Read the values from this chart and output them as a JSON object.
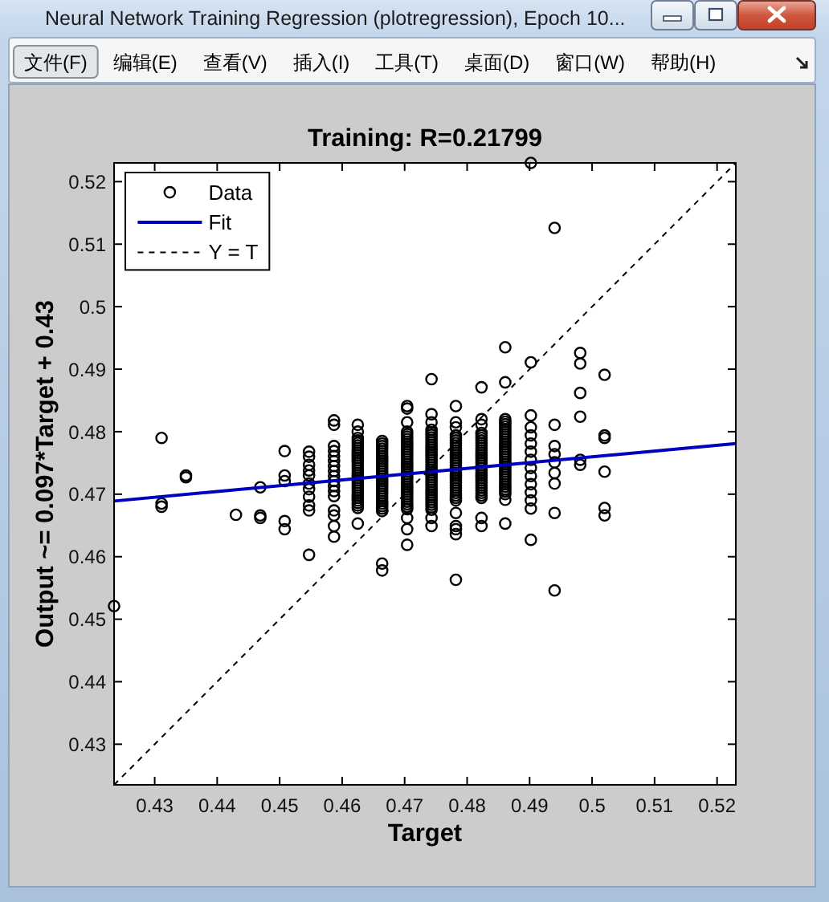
{
  "chart_data": {
    "type": "scatter",
    "title": "Training: R=0.21799",
    "xlabel": "Target",
    "ylabel": "Output ~= 0.097*Target + 0.43",
    "annotations": [
      "Neural Network Training Regression (plotregression), Epoch 10...",
      "文件(F)",
      "编辑(E)",
      "查看(V)",
      "插入(I)",
      "工具(T)",
      "桌面(D)",
      "窗口(W)",
      "帮助(H)"
    ],
    "xlim": [
      0.4235,
      0.523
    ],
    "ylim": [
      0.4235,
      0.523
    ],
    "xticks": [
      0.43,
      0.44,
      0.45,
      0.46,
      0.47,
      0.48,
      0.49,
      0.5,
      0.51,
      0.52
    ],
    "yticks": [
      0.43,
      0.44,
      0.45,
      0.46,
      0.47,
      0.48,
      0.49,
      0.5,
      0.51,
      0.52
    ],
    "legend": "top left",
    "series": [
      {
        "name": "Data",
        "color": "#000000",
        "marker": "circle",
        "x": [
          0.4235,
          0.4311,
          0.4311,
          0.4311,
          0.435,
          0.435,
          0.443,
          0.4469,
          0.4469,
          0.4469,
          0.4508,
          0.4508,
          0.4508,
          0.4508,
          0.4508,
          0.4547,
          0.4547,
          0.4547,
          0.4547,
          0.4547,
          0.4547,
          0.4547,
          0.4547,
          0.4547,
          0.4547,
          0.4547,
          0.4587,
          0.4587,
          0.4587,
          0.4587,
          0.4587,
          0.4587,
          0.4587,
          0.4587,
          0.4587,
          0.4587,
          0.4587,
          0.4587,
          0.4587,
          0.4587,
          0.4587,
          0.4587,
          0.4587,
          0.4625,
          0.4625,
          0.4625,
          0.4625,
          0.4625,
          0.4625,
          0.4625,
          0.4625,
          0.4625,
          0.4625,
          0.4625,
          0.4625,
          0.4625,
          0.4625,
          0.4625,
          0.4625,
          0.4625,
          0.4625,
          0.4625,
          0.4625,
          0.4625,
          0.4625,
          0.4625,
          0.4625,
          0.4625,
          0.4625,
          0.4625,
          0.4625,
          0.4625,
          0.4625,
          0.4625,
          0.4625,
          0.4664,
          0.4664,
          0.4664,
          0.4664,
          0.4664,
          0.4664,
          0.4664,
          0.4664,
          0.4664,
          0.4664,
          0.4664,
          0.4664,
          0.4664,
          0.4664,
          0.4664,
          0.4664,
          0.4664,
          0.4664,
          0.4664,
          0.4664,
          0.4664,
          0.4664,
          0.4664,
          0.4664,
          0.4664,
          0.4664,
          0.4664,
          0.4664,
          0.4664,
          0.4664,
          0.4664,
          0.4704,
          0.4704,
          0.4704,
          0.4704,
          0.4704,
          0.4704,
          0.4704,
          0.4704,
          0.4704,
          0.4704,
          0.4704,
          0.4704,
          0.4704,
          0.4704,
          0.4704,
          0.4704,
          0.4704,
          0.4704,
          0.4704,
          0.4704,
          0.4704,
          0.4704,
          0.4704,
          0.4704,
          0.4704,
          0.4704,
          0.4704,
          0.4704,
          0.4704,
          0.4704,
          0.4704,
          0.4704,
          0.4704,
          0.4704,
          0.4704,
          0.4704,
          0.4704,
          0.4704,
          0.4743,
          0.4743,
          0.4743,
          0.4743,
          0.4743,
          0.4743,
          0.4743,
          0.4743,
          0.4743,
          0.4743,
          0.4743,
          0.4743,
          0.4743,
          0.4743,
          0.4743,
          0.4743,
          0.4743,
          0.4743,
          0.4743,
          0.4743,
          0.4743,
          0.4743,
          0.4743,
          0.4743,
          0.4743,
          0.4743,
          0.4743,
          0.4743,
          0.4743,
          0.4743,
          0.4743,
          0.4743,
          0.4743,
          0.4743,
          0.4743,
          0.4743,
          0.4743,
          0.4743,
          0.4782,
          0.4782,
          0.4782,
          0.4782,
          0.4782,
          0.4782,
          0.4782,
          0.4782,
          0.4782,
          0.4782,
          0.4782,
          0.4782,
          0.4782,
          0.4782,
          0.4782,
          0.4782,
          0.4782,
          0.4782,
          0.4782,
          0.4782,
          0.4782,
          0.4782,
          0.4782,
          0.4782,
          0.4782,
          0.4782,
          0.4782,
          0.4782,
          0.4782,
          0.4782,
          0.4782,
          0.4782,
          0.4782,
          0.4782,
          0.4782,
          0.4823,
          0.4823,
          0.4823,
          0.4823,
          0.4823,
          0.4823,
          0.4823,
          0.4823,
          0.4823,
          0.4823,
          0.4823,
          0.4823,
          0.4823,
          0.4823,
          0.4823,
          0.4823,
          0.4823,
          0.4823,
          0.4823,
          0.4823,
          0.4823,
          0.4823,
          0.4823,
          0.4823,
          0.4823,
          0.4823,
          0.4823,
          0.4823,
          0.4823,
          0.4823,
          0.4823,
          0.4823,
          0.4861,
          0.4861,
          0.4861,
          0.4861,
          0.4861,
          0.4861,
          0.4861,
          0.4861,
          0.4861,
          0.4861,
          0.4861,
          0.4861,
          0.4861,
          0.4861,
          0.4861,
          0.4861,
          0.4861,
          0.4861,
          0.4861,
          0.4861,
          0.4861,
          0.4861,
          0.4861,
          0.4861,
          0.4861,
          0.4861,
          0.4861,
          0.4861,
          0.4861,
          0.4861,
          0.4861,
          0.4861,
          0.4861,
          0.4861,
          0.4861,
          0.4902,
          0.4902,
          0.4902,
          0.4902,
          0.4902,
          0.4902,
          0.4902,
          0.4902,
          0.4902,
          0.4902,
          0.4902,
          0.4902,
          0.4902,
          0.4902,
          0.4902,
          0.494,
          0.494,
          0.494,
          0.494,
          0.494,
          0.494,
          0.494,
          0.494,
          0.494,
          0.4981,
          0.4981,
          0.4981,
          0.4981,
          0.4981,
          0.4981,
          0.502,
          0.502,
          0.502,
          0.502,
          0.502,
          0.502
        ],
        "values": [
          0.4521,
          0.479,
          0.4685,
          0.468,
          0.473,
          0.4727,
          0.4667,
          0.4711,
          0.4666,
          0.4662,
          0.4769,
          0.473,
          0.4721,
          0.4657,
          0.4644,
          0.4768,
          0.476,
          0.4747,
          0.4738,
          0.473,
          0.4717,
          0.4708,
          0.4696,
          0.4682,
          0.4674,
          0.4603,
          0.4818,
          0.4811,
          0.4777,
          0.4769,
          0.4761,
          0.4753,
          0.4745,
          0.4737,
          0.4729,
          0.4721,
          0.4713,
          0.4705,
          0.4697,
          0.4674,
          0.4666,
          0.4649,
          0.4632,
          0.4811,
          0.48,
          0.479,
          0.4786,
          0.4782,
          0.4778,
          0.4774,
          0.477,
          0.4766,
          0.4762,
          0.4758,
          0.4754,
          0.475,
          0.4746,
          0.4742,
          0.4738,
          0.4734,
          0.473,
          0.4726,
          0.4722,
          0.4718,
          0.4714,
          0.471,
          0.4706,
          0.4702,
          0.4698,
          0.4694,
          0.469,
          0.4686,
          0.4682,
          0.4678,
          0.4653,
          0.4785,
          0.4781,
          0.4777,
          0.4773,
          0.4769,
          0.4765,
          0.4761,
          0.4757,
          0.4753,
          0.4749,
          0.4745,
          0.4741,
          0.4737,
          0.4733,
          0.4729,
          0.4725,
          0.4721,
          0.4717,
          0.4713,
          0.4709,
          0.4705,
          0.4701,
          0.4697,
          0.4693,
          0.4689,
          0.4685,
          0.4681,
          0.4677,
          0.4673,
          0.4589,
          0.4578,
          0.4841,
          0.4837,
          0.4815,
          0.48,
          0.4796,
          0.4792,
          0.4788,
          0.4784,
          0.478,
          0.4776,
          0.4772,
          0.4768,
          0.4764,
          0.476,
          0.4756,
          0.4752,
          0.4748,
          0.4744,
          0.474,
          0.4736,
          0.4732,
          0.4728,
          0.4724,
          0.472,
          0.4716,
          0.4712,
          0.4708,
          0.4704,
          0.47,
          0.4696,
          0.4692,
          0.4688,
          0.4684,
          0.468,
          0.4676,
          0.4662,
          0.4644,
          0.4619,
          0.4884,
          0.4828,
          0.4815,
          0.4803,
          0.4799,
          0.4795,
          0.4791,
          0.4787,
          0.4783,
          0.4779,
          0.4775,
          0.4771,
          0.4767,
          0.4763,
          0.4759,
          0.4755,
          0.4751,
          0.4747,
          0.4743,
          0.4739,
          0.4735,
          0.4731,
          0.4727,
          0.4723,
          0.4719,
          0.4715,
          0.4711,
          0.4707,
          0.4703,
          0.4699,
          0.4695,
          0.4691,
          0.4687,
          0.4683,
          0.4679,
          0.4675,
          0.4662,
          0.4649,
          0.4841,
          0.4815,
          0.4807,
          0.4794,
          0.479,
          0.4786,
          0.4782,
          0.4778,
          0.4774,
          0.477,
          0.4766,
          0.4762,
          0.4758,
          0.4754,
          0.475,
          0.4746,
          0.4742,
          0.4738,
          0.4734,
          0.473,
          0.4726,
          0.4722,
          0.4718,
          0.4714,
          0.471,
          0.4706,
          0.4702,
          0.4698,
          0.4694,
          0.469,
          0.467,
          0.4649,
          0.4644,
          0.4636,
          0.4563,
          0.4871,
          0.482,
          0.4811,
          0.4798,
          0.4794,
          0.479,
          0.4786,
          0.4782,
          0.4778,
          0.4774,
          0.477,
          0.4766,
          0.4762,
          0.4758,
          0.4754,
          0.475,
          0.4746,
          0.4742,
          0.4738,
          0.4734,
          0.473,
          0.4726,
          0.4722,
          0.4718,
          0.4714,
          0.471,
          0.4706,
          0.4702,
          0.4698,
          0.4694,
          0.4662,
          0.4649,
          0.4935,
          0.4879,
          0.482,
          0.4816,
          0.4812,
          0.4808,
          0.4804,
          0.48,
          0.4796,
          0.4792,
          0.4788,
          0.4784,
          0.478,
          0.4776,
          0.4772,
          0.4768,
          0.4764,
          0.476,
          0.4756,
          0.4752,
          0.4748,
          0.4744,
          0.474,
          0.4736,
          0.4732,
          0.4728,
          0.4724,
          0.472,
          0.4716,
          0.4712,
          0.4708,
          0.4704,
          0.47,
          0.4691,
          0.4653,
          0.523,
          0.4911,
          0.4826,
          0.4807,
          0.4794,
          0.4781,
          0.4768,
          0.4755,
          0.4742,
          0.4729,
          0.4716,
          0.4703,
          0.469,
          0.4677,
          0.4627,
          0.5126,
          0.4811,
          0.4777,
          0.4764,
          0.4751,
          0.4734,
          0.4717,
          0.467,
          0.4546,
          0.4926,
          0.4909,
          0.4862,
          0.4824,
          0.4755,
          0.4747,
          0.4891,
          0.4794,
          0.479,
          0.4736,
          0.4678,
          0.4666
        ]
      },
      {
        "name": "Fit",
        "type": "line",
        "color": "#0000c0",
        "line_style": "solid",
        "x": [
          0.4235,
          0.523
        ],
        "values": [
          0.4689,
          0.4781
        ]
      },
      {
        "name": "Y = T",
        "type": "line",
        "color": "#000000",
        "line_style": "dashed",
        "x": [
          0.4235,
          0.523
        ],
        "values": [
          0.4235,
          0.523
        ]
      }
    ]
  }
}
